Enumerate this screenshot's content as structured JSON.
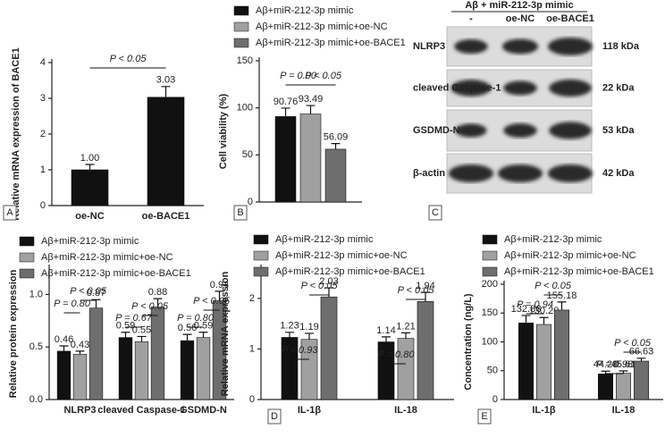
{
  "chart_data": [
    {
      "type": "bar",
      "panel": "A",
      "ylabel": "Relative mRNA expression of BACE1",
      "categories": [
        "oe-NC",
        "oe-BACE1"
      ],
      "series": [
        {
          "color": "#111111",
          "values": [
            1.0,
            3.03
          ],
          "value_labels": [
            "1.00",
            "3.03"
          ],
          "errors": [
            0.15,
            0.3
          ]
        }
      ],
      "ylim": [
        0,
        4
      ],
      "yticks": [
        0,
        1,
        2,
        3,
        4
      ],
      "annotations": [
        "P < 0.05"
      ]
    },
    {
      "type": "bar",
      "panel": "B",
      "ylabel": "Cell viability (%)",
      "categories": [
        null
      ],
      "series": [
        {
          "name": "Aβ+miR-212-3p mimic",
          "color": "#111111",
          "values": [
            90.76
          ],
          "value_labels": [
            "90.76"
          ],
          "errors": [
            9
          ]
        },
        {
          "name": "Aβ+miR-212-3p mimic+oe-NC",
          "color": "#a0a0a0",
          "values": [
            93.49
          ],
          "value_labels": [
            "93.49"
          ],
          "errors": [
            9
          ]
        },
        {
          "name": "Aβ+miR-212-3p mimic+oe-BACE1",
          "color": "#6e6e6e",
          "values": [
            56.09
          ],
          "value_labels": [
            "56.09"
          ],
          "errors": [
            6
          ]
        }
      ],
      "ylim": [
        0,
        150
      ],
      "yticks": [
        0,
        50,
        100,
        150
      ],
      "annotations": [
        "P = 0.90",
        "P < 0.05"
      ]
    },
    {
      "type": "bar",
      "ylabel": "Relative protein expression",
      "categories": [
        "NLRP3",
        "cleaved Caspase-1",
        "GSDMD-N"
      ],
      "series": [
        {
          "name": "Aβ+miR-212-3p mimic",
          "color": "#111111",
          "values": [
            0.46,
            0.59,
            0.56
          ],
          "value_labels": [
            "0.46",
            "0.59",
            "0.56"
          ],
          "errors": [
            0.05,
            0.05,
            0.06
          ]
        },
        {
          "name": "Aβ+miR-212-3p mimic+oe-NC",
          "color": "#a0a0a0",
          "values": [
            0.43,
            0.55,
            0.59
          ],
          "value_labels": [
            "0.43",
            "0.55",
            "0.59"
          ],
          "errors": [
            0.03,
            0.05,
            0.05
          ]
        },
        {
          "name": "Aβ+miR-212-3p mimic+oe-BACE1",
          "color": "#6e6e6e",
          "values": [
            0.87,
            0.88,
            0.94
          ],
          "value_labels": [
            "0.87",
            "0.88",
            "0.94"
          ],
          "errors": [
            0.08,
            0.08,
            0.09
          ]
        }
      ],
      "ylim": [
        0,
        1.25
      ],
      "yticks": [
        {
          "value": 0,
          "label": "0.0"
        },
        0.5,
        {
          "value": 1,
          "label": "1.0"
        }
      ],
      "annotations": [
        "P = 0.80",
        "P < 0.05",
        "P = 0.67",
        "P < 0.05",
        "P = 0.80",
        "P < 0.05"
      ]
    },
    {
      "type": "bar",
      "panel": "D",
      "ylabel": "Relative mRNA expression",
      "categories": [
        "IL-1β",
        "IL-18"
      ],
      "series": [
        {
          "name": "Aβ+miR-212-3p mimic",
          "color": "#111111",
          "values": [
            1.23,
            1.14
          ],
          "value_labels": [
            "1.23",
            "1.14"
          ],
          "errors": [
            0.1,
            0.1
          ]
        },
        {
          "name": "Aβ+miR-212-3p mimic+oe-NC",
          "color": "#a0a0a0",
          "values": [
            1.19,
            1.21
          ],
          "value_labels": [
            "1.19",
            "1.21"
          ],
          "errors": [
            0.12,
            0.11
          ]
        },
        {
          "name": "Aβ+miR-212-3p mimic+oe-BACE1",
          "color": "#6e6e6e",
          "values": [
            2.03,
            1.94
          ],
          "value_labels": [
            "2.03",
            "1.94"
          ],
          "errors": [
            0.18,
            0.18
          ]
        }
      ],
      "ylim": [
        0,
        2.6
      ],
      "yticks": [
        0,
        1,
        2
      ],
      "annotations": [
        "P = 0.93",
        "P < 0.05",
        "P = 0.80",
        "P < 0.05"
      ]
    },
    {
      "type": "bar",
      "panel": "E",
      "ylabel": "Concentration (ng/L)",
      "categories": [
        "IL-1β",
        "IL-18"
      ],
      "series": [
        {
          "name": "Aβ+miR-212-3p mimic",
          "color": "#111111",
          "values": [
            132.86,
            44.28
          ],
          "value_labels": [
            "132.86",
            "44.28"
          ],
          "errors": [
            13,
            5
          ]
        },
        {
          "name": "Aβ+miR-212-3p mimic+oe-NC",
          "color": "#a0a0a0",
          "values": [
            130.2,
            45.61
          ],
          "value_labels": [
            "130.20",
            "45.61"
          ],
          "errors": [
            12,
            4
          ]
        },
        {
          "name": "Aβ+miR-212-3p mimic+oe-BACE1",
          "color": "#6e6e6e",
          "values": [
            155.18,
            66.63
          ],
          "value_labels": [
            "155.18",
            "66.63"
          ],
          "errors": [
            14,
            5
          ]
        }
      ],
      "ylim": [
        0,
        200
      ],
      "yticks": [
        0,
        50,
        100,
        150,
        200
      ],
      "annotations": [
        "P = 0.94",
        "P < 0.05",
        "P = 0.98",
        "P < 0.05"
      ]
    }
  ],
  "blot": {
    "panel": "C",
    "title": "Aβ + miR-212-3p mimic",
    "lanes": [
      "-",
      "oe-NC",
      "oe-BACE1"
    ],
    "rows": [
      {
        "label": "NLRP3",
        "size": "118 kDa"
      },
      {
        "label": "cleaved Caspase-1",
        "size": "22 kDa"
      },
      {
        "label": "GSDMD-N",
        "size": "53 kDa"
      },
      {
        "label": "β-actin",
        "size": "42 kDa"
      }
    ]
  }
}
